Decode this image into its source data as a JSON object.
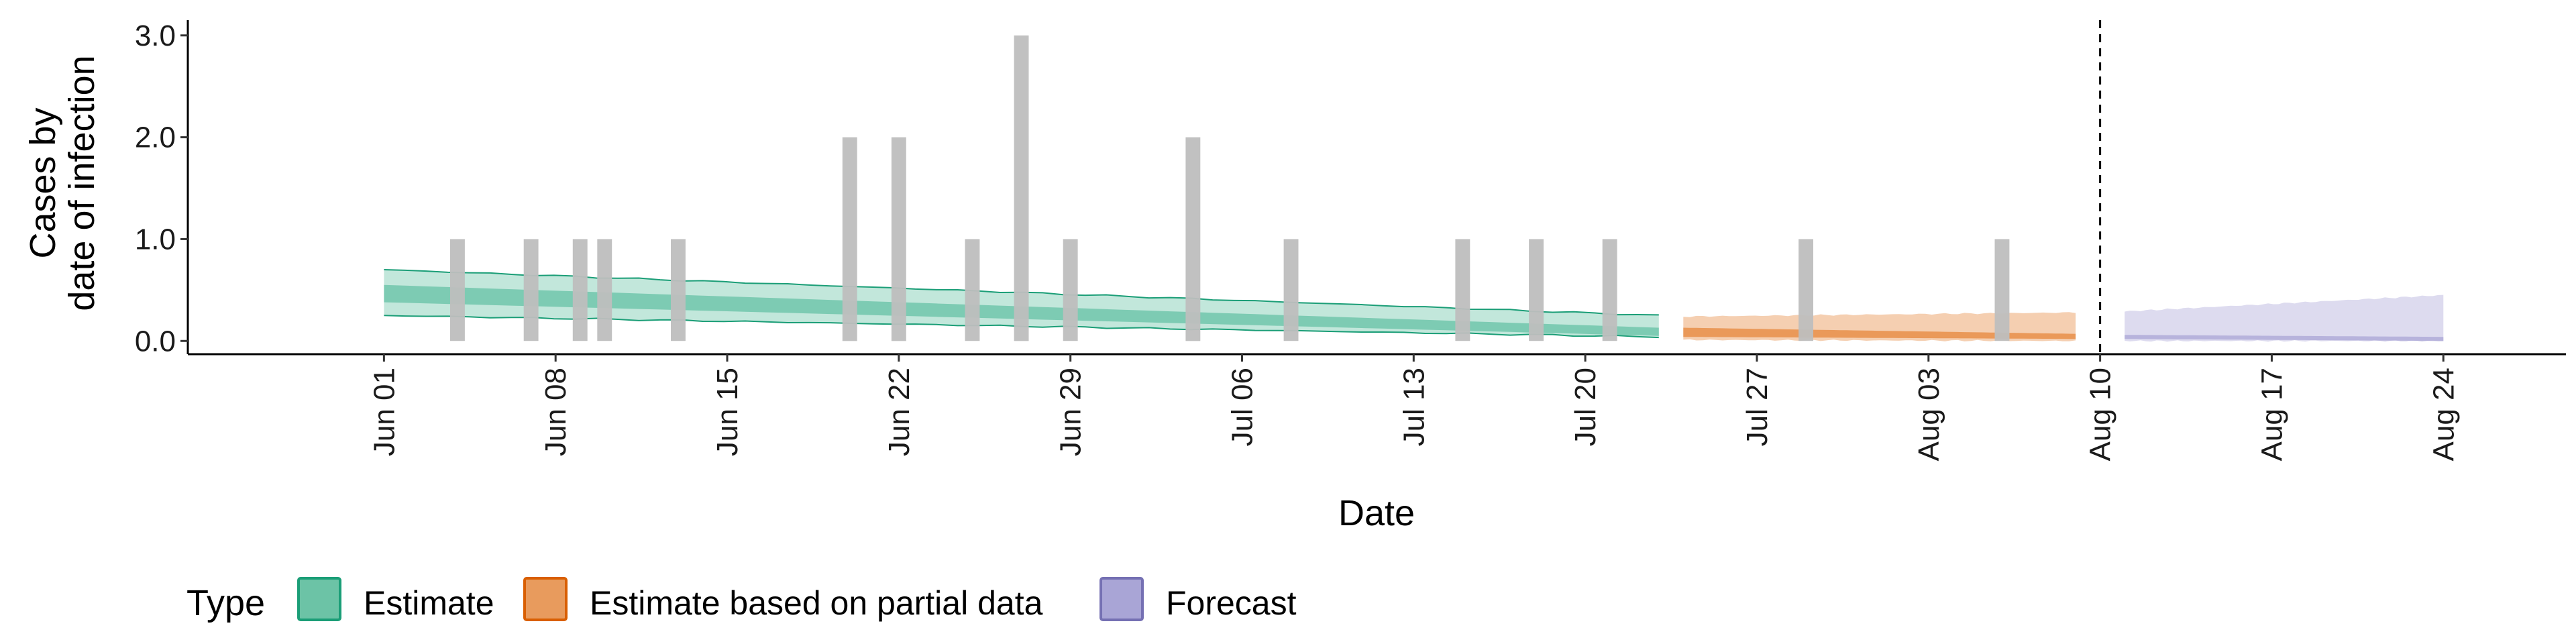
{
  "chart_data": {
    "type": "bar+area",
    "xlabel": "Date",
    "ylabel_lines": [
      "Cases by",
      "date of infection"
    ],
    "ylim": [
      -0.13,
      3.15
    ],
    "yticks": [
      0,
      1,
      2,
      3
    ],
    "ytick_labels": [
      "0.0",
      "1.0",
      "2.0",
      "3.0"
    ],
    "xlim": [
      "2020-05-24",
      "2020-08-29"
    ],
    "xticks": [
      "2020-06-01",
      "2020-06-08",
      "2020-06-15",
      "2020-06-22",
      "2020-06-29",
      "2020-07-06",
      "2020-07-13",
      "2020-07-20",
      "2020-07-27",
      "2020-08-03",
      "2020-08-10",
      "2020-08-17",
      "2020-08-24"
    ],
    "xtick_labels": [
      "Jun 01",
      "Jun 08",
      "Jun 15",
      "Jun 22",
      "Jun 29",
      "Jul 06",
      "Jul 13",
      "Jul 20",
      "Jul 27",
      "Aug 03",
      "Aug 10",
      "Aug 17",
      "Aug 24"
    ],
    "vline_date": "2020-08-10",
    "bars": {
      "color": "#bebebe",
      "points": [
        {
          "date": "2020-06-04",
          "value": 1
        },
        {
          "date": "2020-06-07",
          "value": 1
        },
        {
          "date": "2020-06-09",
          "value": 1
        },
        {
          "date": "2020-06-10",
          "value": 1
        },
        {
          "date": "2020-06-13",
          "value": 1
        },
        {
          "date": "2020-06-20",
          "value": 2
        },
        {
          "date": "2020-06-22",
          "value": 2
        },
        {
          "date": "2020-06-25",
          "value": 1
        },
        {
          "date": "2020-06-27",
          "value": 3
        },
        {
          "date": "2020-06-29",
          "value": 1
        },
        {
          "date": "2020-07-04",
          "value": 2
        },
        {
          "date": "2020-07-08",
          "value": 1
        },
        {
          "date": "2020-07-15",
          "value": 1
        },
        {
          "date": "2020-07-18",
          "value": 1
        },
        {
          "date": "2020-07-21",
          "value": 1
        },
        {
          "date": "2020-07-29",
          "value": 1
        },
        {
          "date": "2020-08-06",
          "value": 1
        }
      ]
    },
    "series": [
      {
        "name": "Estimate",
        "color": "#1b9e77",
        "fill": "#66c2a5",
        "x_start": "2020-06-01",
        "x_end": "2020-07-23",
        "lower90": [
          0.25,
          0.04
        ],
        "upper90": [
          0.7,
          0.25
        ],
        "lower50": [
          0.38,
          0.05
        ],
        "upper50": [
          0.55,
          0.13
        ]
      },
      {
        "name": "Estimate based on partial data",
        "color": "#d95f02",
        "fill": "#e6873c",
        "x_start": "2020-07-24",
        "x_end": "2020-08-09",
        "lower90": [
          0.01,
          0.0
        ],
        "upper90": [
          0.24,
          0.28
        ],
        "lower50": [
          0.04,
          0.02
        ],
        "upper50": [
          0.13,
          0.07
        ]
      },
      {
        "name": "Forecast",
        "color": "#7570b3",
        "fill": "#a9a5d6",
        "x_start": "2020-08-11",
        "x_end": "2020-08-24",
        "lower90": [
          0.0,
          0.0
        ],
        "upper90": [
          0.29,
          0.45
        ],
        "lower50": [
          0.02,
          0.0
        ],
        "upper50": [
          0.06,
          0.04
        ]
      }
    ],
    "legend": {
      "title": "Type",
      "position": "bottom",
      "entries": [
        {
          "label": "Estimate",
          "fill": "#6cc3a6",
          "stroke": "#1b9e77"
        },
        {
          "label": "Estimate based on partial data",
          "fill": "#e89b5d",
          "stroke": "#d95f02"
        },
        {
          "label": "Forecast",
          "fill": "#a9a5d6",
          "stroke": "#7570b3"
        }
      ]
    }
  }
}
